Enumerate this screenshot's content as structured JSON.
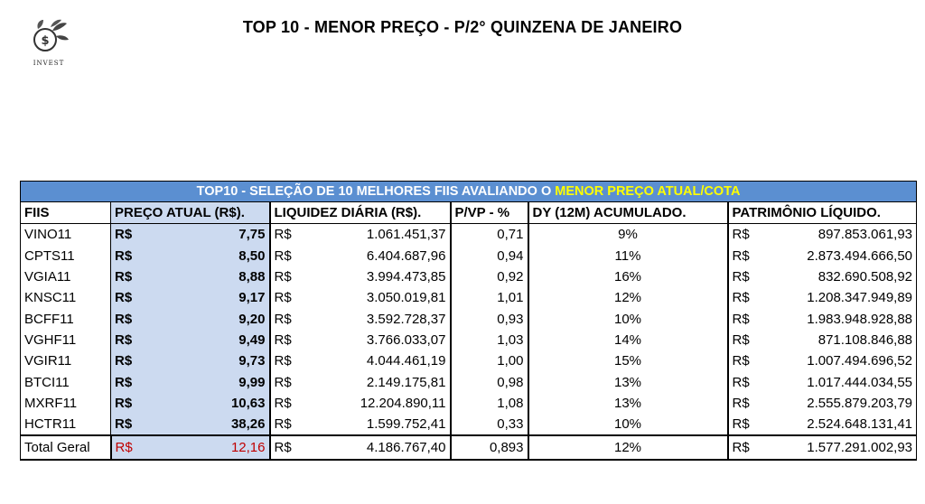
{
  "header": {
    "title": "TOP 10 - MENOR PREÇO - P/2° QUINZENA DE JANEIRO",
    "logo_text": "INVEST"
  },
  "table": {
    "banner_prefix": "TOP10 - SELEÇÃO DE 10 MELHORES FIIS AVALIANDO O ",
    "banner_highlight": "MENOR PREÇO ATUAL/COTA",
    "columns": [
      "FIIS",
      "PREÇO ATUAL (R$).",
      "LIQUIDEZ DIÁRIA (R$).",
      "P/VP - %",
      "DY (12M) ACUMULADO.",
      "PATRIMÔNIO LÍQUIDO."
    ],
    "currency": "R$",
    "rows": [
      {
        "fii": "VINO11",
        "price": "7,75",
        "liquidity": "1.061.451,37",
        "pvp": "0,71",
        "dy": "9%",
        "patrimony": "897.853.061,93"
      },
      {
        "fii": "CPTS11",
        "price": "8,50",
        "liquidity": "6.404.687,96",
        "pvp": "0,94",
        "dy": "11%",
        "patrimony": "2.873.494.666,50"
      },
      {
        "fii": "VGIA11",
        "price": "8,88",
        "liquidity": "3.994.473,85",
        "pvp": "0,92",
        "dy": "16%",
        "patrimony": "832.690.508,92"
      },
      {
        "fii": "KNSC11",
        "price": "9,17",
        "liquidity": "3.050.019,81",
        "pvp": "1,01",
        "dy": "12%",
        "patrimony": "1.208.347.949,89"
      },
      {
        "fii": "BCFF11",
        "price": "9,20",
        "liquidity": "3.592.728,37",
        "pvp": "0,93",
        "dy": "10%",
        "patrimony": "1.983.948.928,88"
      },
      {
        "fii": "VGHF11",
        "price": "9,49",
        "liquidity": "3.766.033,07",
        "pvp": "1,03",
        "dy": "14%",
        "patrimony": "871.108.846,88"
      },
      {
        "fii": "VGIR11",
        "price": "9,73",
        "liquidity": "4.044.461,19",
        "pvp": "1,00",
        "dy": "15%",
        "patrimony": "1.007.494.696,52"
      },
      {
        "fii": "BTCI11",
        "price": "9,99",
        "liquidity": "2.149.175,81",
        "pvp": "0,98",
        "dy": "13%",
        "patrimony": "1.017.444.034,55"
      },
      {
        "fii": "MXRF11",
        "price": "10,63",
        "liquidity": "12.204.890,11",
        "pvp": "1,08",
        "dy": "13%",
        "patrimony": "2.555.879.203,79"
      },
      {
        "fii": "HCTR11",
        "price": "38,26",
        "liquidity": "1.599.752,41",
        "pvp": "0,33",
        "dy": "10%",
        "patrimony": "2.524.648.131,41"
      }
    ],
    "total": {
      "fii": "Total Geral",
      "price": "12,16",
      "liquidity": "4.186.767,40",
      "pvp": "0,893",
      "dy": "12%",
      "patrimony": "1.577.291.002,93"
    }
  },
  "colors": {
    "banner": "#5b8fd1",
    "highlight": "#ffff00",
    "price_col": "#ccdaf0",
    "total_price": "#c00000"
  }
}
